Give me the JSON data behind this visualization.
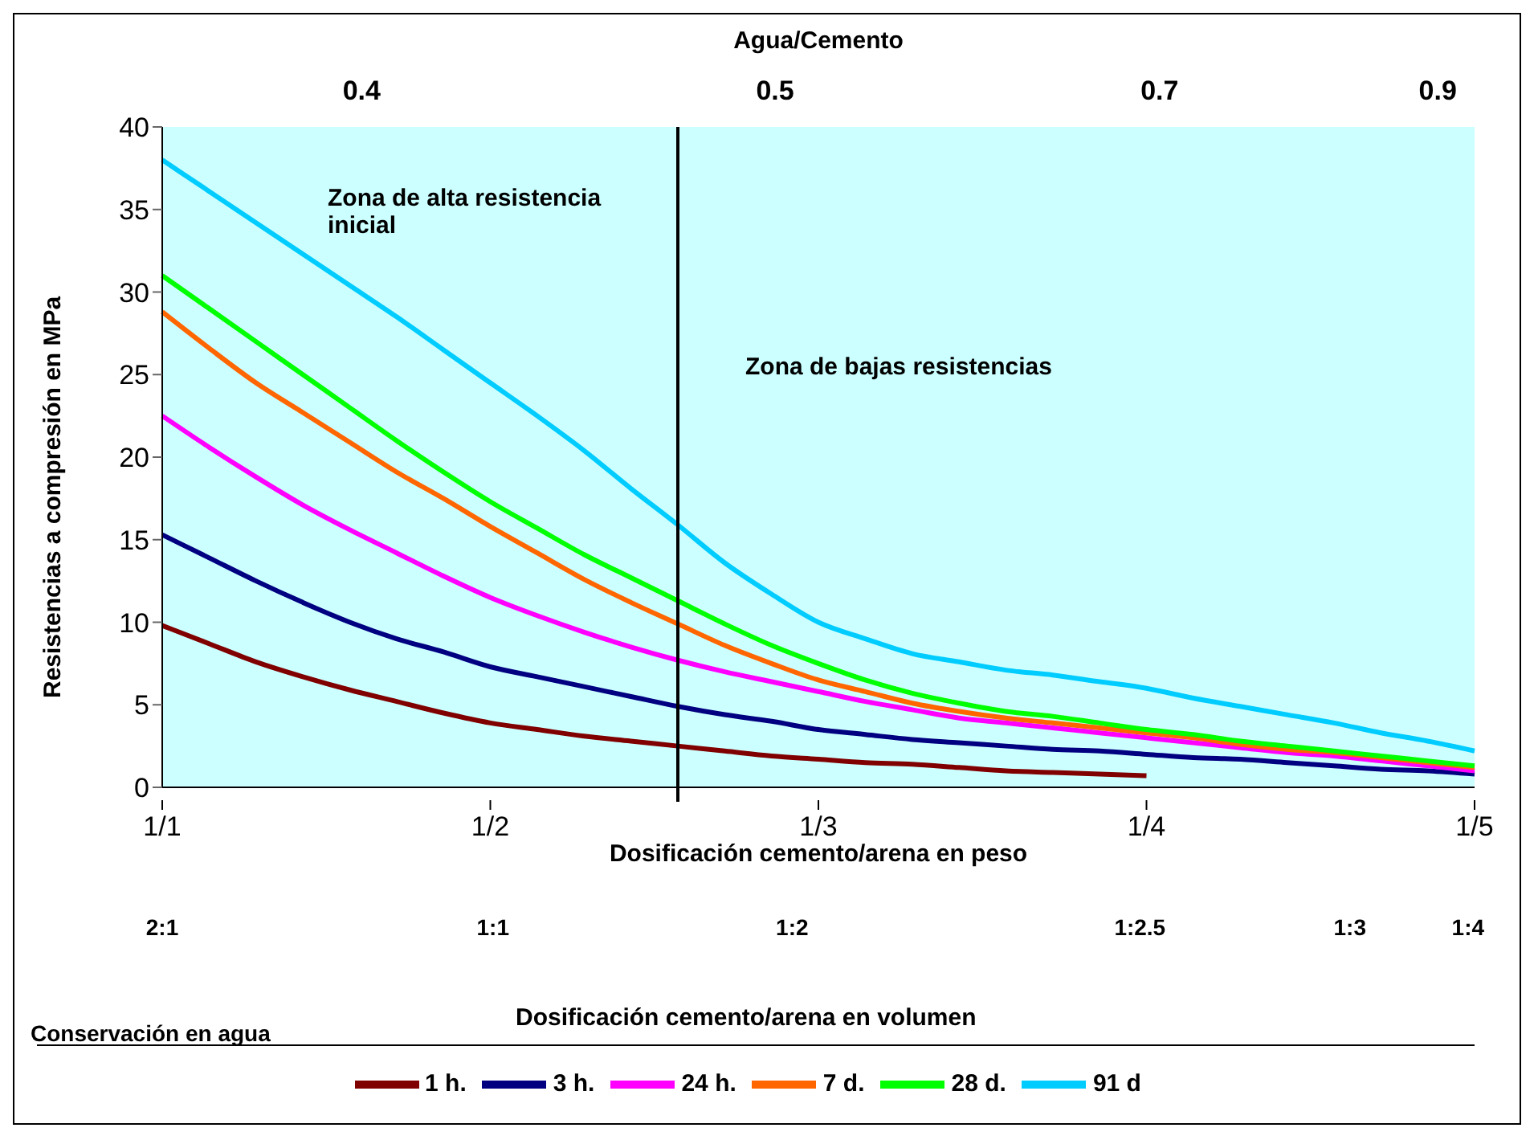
{
  "chart_data": {
    "type": "line",
    "ylabel": "Resistencias a compresión en MPa",
    "xlabel": "Dosificación cemento/arena en peso",
    "x2label": "Agua/Cemento",
    "categories": [
      "1/1",
      null,
      null,
      null,
      null,
      null,
      null,
      "1/2",
      null,
      null,
      null,
      null,
      null,
      null,
      "1/3",
      null,
      null,
      null,
      null,
      null,
      null,
      "1/4",
      null,
      null,
      null,
      null,
      null,
      null,
      "1/5"
    ],
    "ylim": [
      0,
      40
    ],
    "yticks": [
      0,
      5,
      10,
      15,
      20,
      25,
      30,
      35,
      40
    ],
    "series": [
      {
        "name": "1 h.",
        "color": "#800000",
        "values": [
          9.8,
          8.7,
          7.6,
          6.7,
          5.9,
          5.2,
          4.5,
          3.9,
          3.5,
          3.1,
          2.8,
          2.5,
          2.2,
          1.9,
          1.7,
          1.5,
          1.4,
          1.2,
          1,
          0.9,
          0.8,
          0.7,
          null,
          null,
          null,
          null,
          null,
          null,
          null
        ]
      },
      {
        "name": "3 h.",
        "color": "#000080",
        "values": [
          15.3,
          13.9,
          12.5,
          11.2,
          10,
          9,
          8.2,
          7.3,
          6.7,
          6.1,
          5.5,
          4.9,
          4.4,
          4,
          3.5,
          3.2,
          2.9,
          2.7,
          2.5,
          2.3,
          2.2,
          2,
          1.8,
          1.7,
          1.5,
          1.3,
          1.1,
          1,
          0.8
        ]
      },
      {
        "name": "24 h.",
        "color": "#ff00ff",
        "values": [
          22.5,
          20.6,
          18.8,
          17.1,
          15.6,
          14.2,
          12.8,
          11.5,
          10.4,
          9.4,
          8.5,
          7.7,
          7,
          6.4,
          5.8,
          5.2,
          4.7,
          4.2,
          3.9,
          3.6,
          3.3,
          3,
          2.7,
          2.4,
          2.1,
          1.9,
          1.6,
          1.3,
          1
        ]
      },
      {
        "name": "7 d.",
        "color": "#ff6600",
        "values": [
          28.8,
          26.6,
          24.5,
          22.7,
          20.9,
          19.1,
          17.5,
          15.8,
          14.2,
          12.6,
          11.2,
          9.9,
          8.6,
          7.5,
          6.5,
          5.8,
          5.1,
          4.6,
          4.2,
          3.9,
          3.6,
          3.3,
          3,
          2.6,
          2.3,
          2.1,
          1.8,
          1.5,
          1.2
        ]
      },
      {
        "name": "28 d.",
        "color": "#00ff00",
        "values": [
          31,
          29,
          27,
          25,
          23,
          21,
          19.1,
          17.3,
          15.7,
          14.1,
          12.7,
          11.3,
          9.9,
          8.6,
          7.5,
          6.5,
          5.7,
          5.1,
          4.6,
          4.3,
          3.9,
          3.5,
          3.2,
          2.8,
          2.5,
          2.2,
          1.9,
          1.6,
          1.3
        ]
      },
      {
        "name": "91 d",
        "color": "#00ccff",
        "values": [
          38,
          36.1,
          34.2,
          32.3,
          30.4,
          28.5,
          26.5,
          24.5,
          22.5,
          20.4,
          18.1,
          15.9,
          13.6,
          11.7,
          10,
          9,
          8.1,
          7.6,
          7.1,
          6.8,
          6.4,
          6,
          5.4,
          4.9,
          4.4,
          3.9,
          3.3,
          2.8,
          2.2
        ]
      }
    ],
    "annotations": [
      "Zona de alta resistencia inicial",
      "Zona de bajas resistencias",
      "Conservación en agua",
      "Dosificación cemento/arena en volumen",
      "0.4",
      "0.5",
      "0.7",
      "0.9",
      "2:1",
      "1:1",
      "1:2",
      "1:2.5",
      "1:3",
      "1:4"
    ],
    "legend": "bottom",
    "grid": false
  }
}
